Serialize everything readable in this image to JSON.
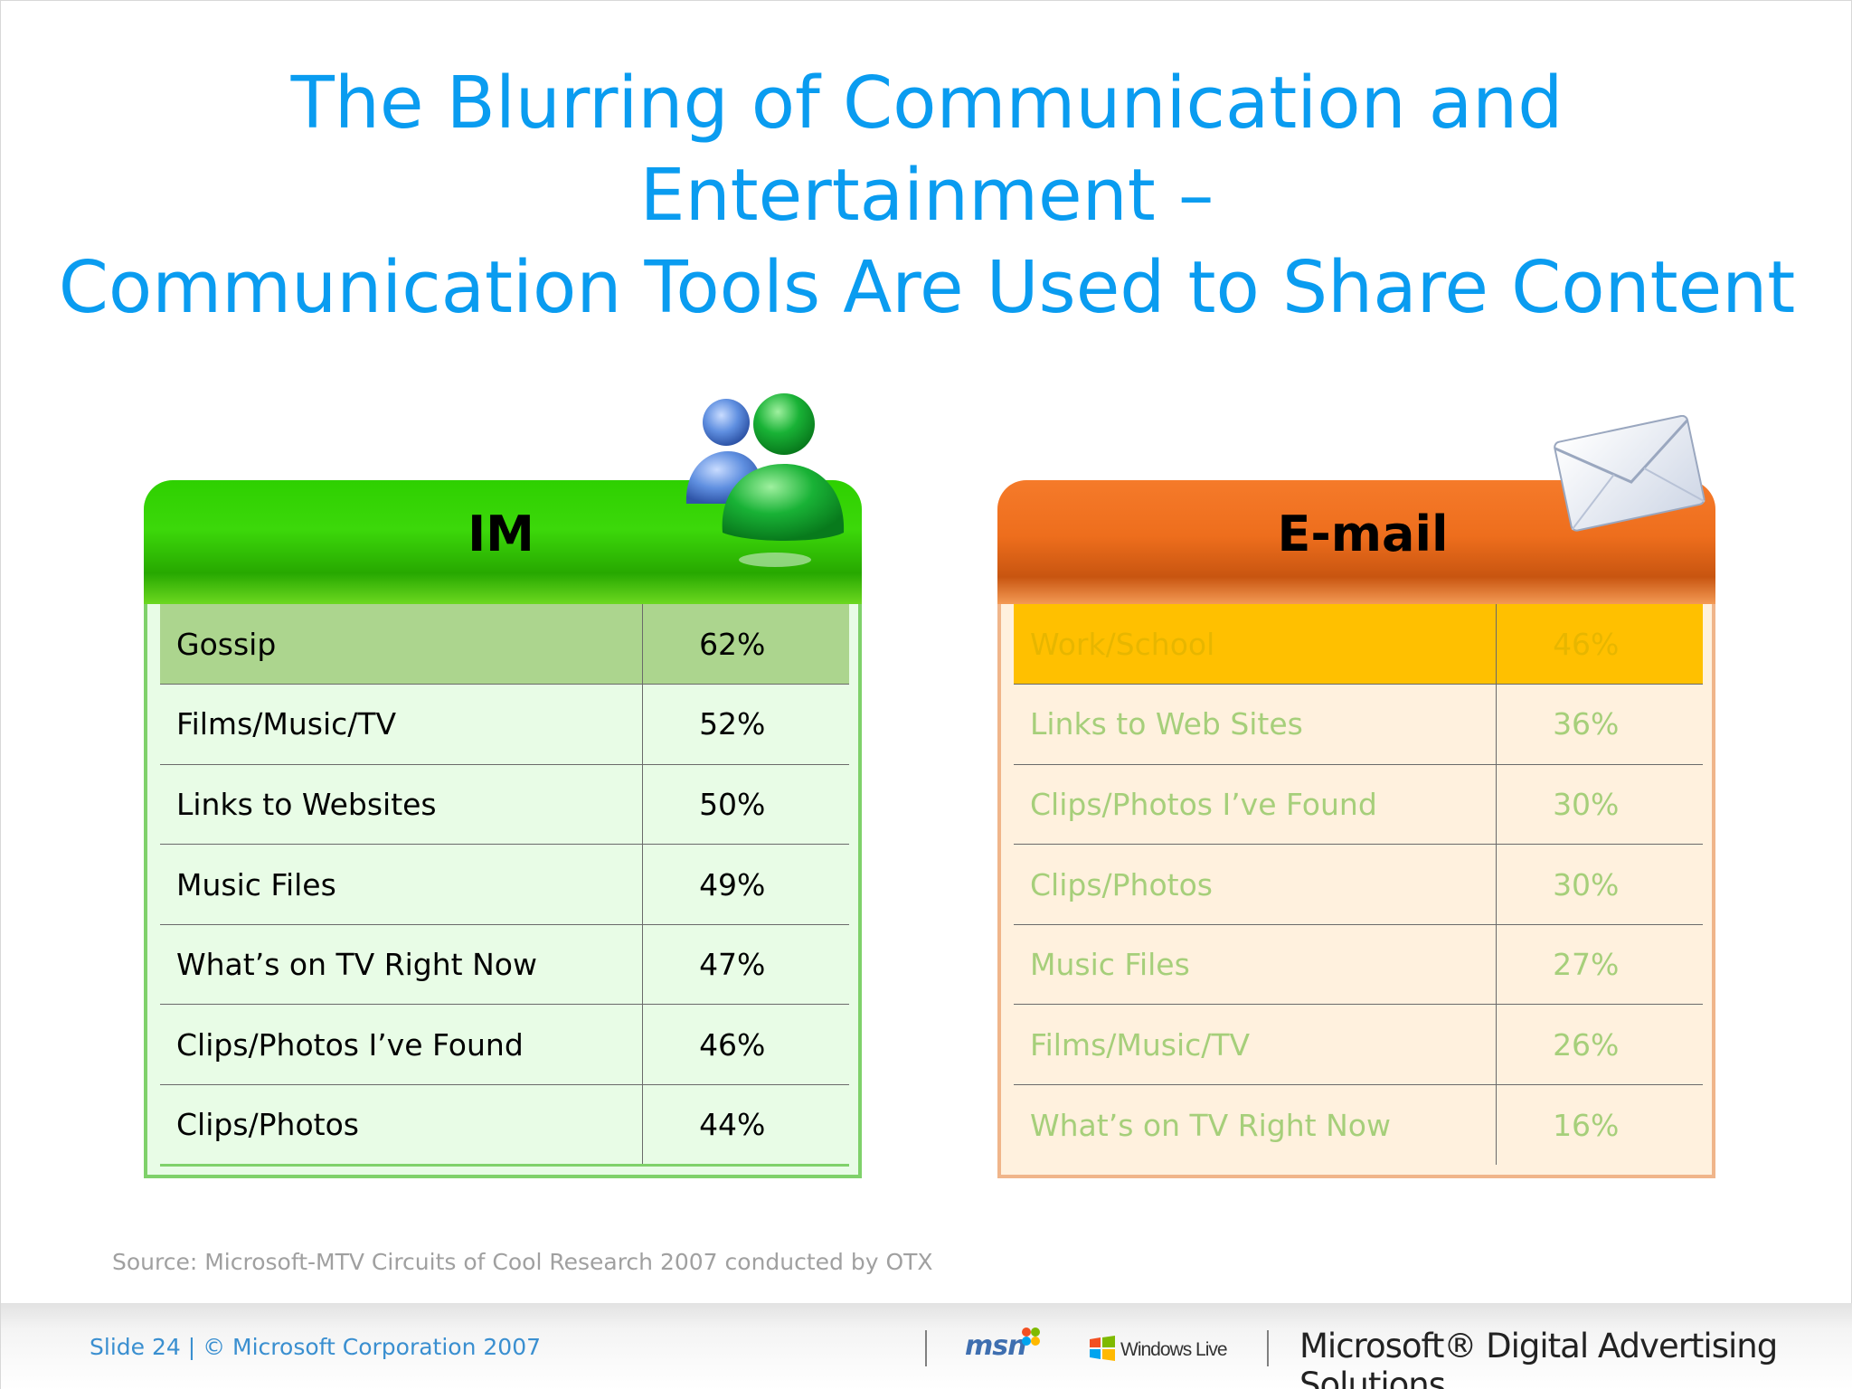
{
  "title_line1": "The Blurring of Communication and Entertainment –",
  "title_line2": "Communication Tools Are Used to Share Content",
  "im": {
    "header": "IM",
    "rows": [
      {
        "label": "Gossip",
        "value": "62%"
      },
      {
        "label": "Films/Music/TV",
        "value": "52%"
      },
      {
        "label": "Links to Websites",
        "value": "50%"
      },
      {
        "label": "Music Files",
        "value": "49%"
      },
      {
        "label": "What’s on TV Right Now",
        "value": "47%"
      },
      {
        "label": "Clips/Photos I’ve Found",
        "value": "46%"
      },
      {
        "label": "Clips/Photos",
        "value": "44%"
      }
    ]
  },
  "email": {
    "header": "E-mail",
    "rows": [
      {
        "label": "Work/School",
        "value": "46%"
      },
      {
        "label": "Links to Web Sites",
        "value": "36%"
      },
      {
        "label": "Clips/Photos I’ve Found",
        "value": "30%"
      },
      {
        "label": "Clips/Photos",
        "value": "30%"
      },
      {
        "label": "Music Files",
        "value": "27%"
      },
      {
        "label": "Films/Music/TV",
        "value": "26%"
      },
      {
        "label": "What’s on TV Right Now",
        "value": "16%"
      }
    ]
  },
  "source": "Source: Microsoft-MTV Circuits of Cool Research 2007 conducted by OTX",
  "footer": {
    "slide": "Slide 24 | © Microsoft Corporation 2007",
    "msn": "msn",
    "windows_live": "Windows Live",
    "brand": "Microsoft® Digital Advertising Solutions"
  },
  "icons": {
    "messenger": "messenger-buddies-icon",
    "mail": "envelope-icon"
  },
  "colors": {
    "title": "#0a9cf0",
    "im_header": "#3cd80a",
    "email_header": "#ee6e1d",
    "im_highlight": "#acd58e",
    "email_highlight": "#ffc000"
  }
}
